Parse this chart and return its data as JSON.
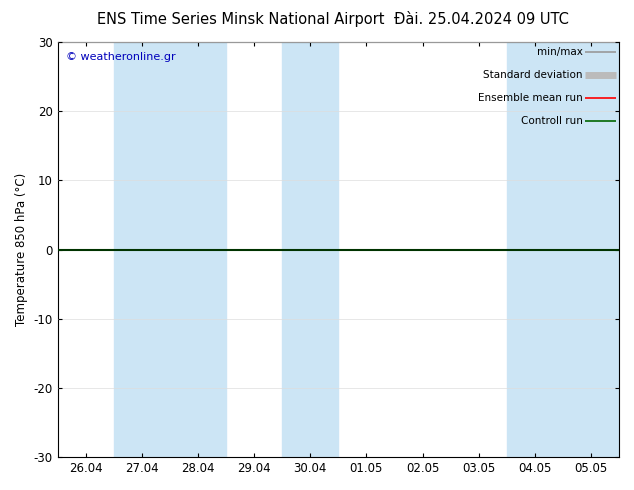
{
  "title_left": "ENS Time Series Minsk National Airport",
  "title_right": "Đài. 25.04.2024 09 UTC",
  "ylabel": "Temperature 850 hPa (°C)",
  "copyright": "© weatheronline.gr",
  "ylim": [
    -30,
    30
  ],
  "yticks": [
    -30,
    -20,
    -10,
    0,
    10,
    20,
    30
  ],
  "x_labels": [
    "26.04",
    "27.04",
    "28.04",
    "29.04",
    "30.04",
    "01.05",
    "02.05",
    "03.05",
    "04.05",
    "05.05"
  ],
  "x_positions": [
    0,
    1,
    2,
    3,
    4,
    5,
    6,
    7,
    8,
    9
  ],
  "blue_band_ranges": [
    [
      0.5,
      2.5
    ],
    [
      3.5,
      4.5
    ],
    [
      7.5,
      9.5
    ]
  ],
  "zero_line_y": 0,
  "bg_color": "#ffffff",
  "band_color": "#cce5f5",
  "legend_items": [
    {
      "label": "min/max",
      "color": "#999999",
      "lw": 1.2
    },
    {
      "label": "Standard deviation",
      "color": "#bbbbbb",
      "lw": 5
    },
    {
      "label": "Ensemble mean run",
      "color": "#ff0000",
      "lw": 1.2
    },
    {
      "label": "Controll run",
      "color": "#006600",
      "lw": 1.2
    }
  ],
  "title_fontsize": 10.5,
  "axis_fontsize": 8.5,
  "tick_label_fontsize": 8.5,
  "copyright_color": "#0000bb",
  "grid_color": "#dddddd",
  "frame_color": "#000000",
  "zero_line_color": "#003300",
  "zero_line_lw": 1.5
}
